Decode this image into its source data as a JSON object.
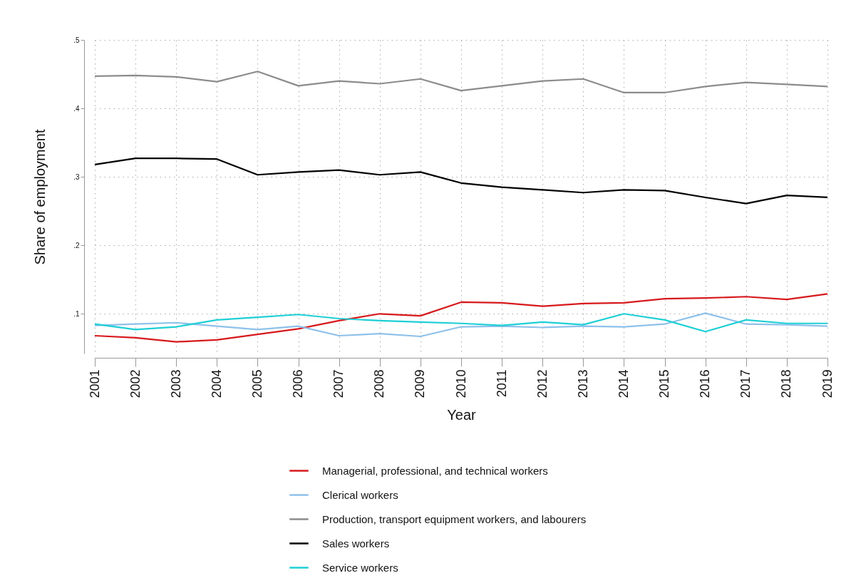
{
  "chart_data": {
    "type": "line",
    "xlabel": "Year",
    "ylabel": "Share of employment",
    "x": [
      2001,
      2002,
      2003,
      2004,
      2005,
      2006,
      2007,
      2008,
      2009,
      2010,
      2011,
      2012,
      2013,
      2014,
      2015,
      2016,
      2017,
      2018,
      2019
    ],
    "series": [
      {
        "name": "Managerial, professional, and technical workers",
        "color": "#d7191c",
        "values": [
          0.068,
          0.065,
          0.059,
          0.062,
          0.07,
          0.078,
          0.09,
          0.1,
          0.097,
          0.117,
          0.116,
          0.111,
          0.115,
          0.116,
          0.122,
          0.123,
          0.125,
          0.121,
          0.129
        ]
      },
      {
        "name": "Clerical workers",
        "color": "#8ec1ea",
        "values": [
          0.083,
          0.085,
          0.087,
          0.082,
          0.077,
          0.082,
          0.068,
          0.071,
          0.067,
          0.081,
          0.082,
          0.08,
          0.082,
          0.081,
          0.085,
          0.101,
          0.085,
          0.084,
          0.082
        ]
      },
      {
        "name": "Production, transport equipment workers, and labourers",
        "color": "#8c8c8c",
        "values": [
          0.447,
          0.448,
          0.446,
          0.439,
          0.454,
          0.433,
          0.44,
          0.436,
          0.443,
          0.426,
          0.433,
          0.44,
          0.443,
          0.423,
          0.423,
          0.432,
          0.438,
          0.435,
          0.432
        ]
      },
      {
        "name": "Sales workers",
        "color": "#000000",
        "values": [
          0.318,
          0.327,
          0.327,
          0.326,
          0.303,
          0.307,
          0.31,
          0.303,
          0.307,
          0.291,
          0.285,
          0.281,
          0.277,
          0.281,
          0.28,
          0.27,
          0.261,
          0.273,
          0.27
        ]
      },
      {
        "name": "Service workers",
        "color": "#1ecfd6",
        "values": [
          0.085,
          0.077,
          0.081,
          0.091,
          0.095,
          0.099,
          0.093,
          0.09,
          0.088,
          0.086,
          0.083,
          0.088,
          0.084,
          0.1,
          0.091,
          0.074,
          0.091,
          0.086,
          0.086
        ]
      }
    ],
    "xlim": [
      2001,
      2019
    ],
    "xticks": [
      2001,
      2002,
      2003,
      2004,
      2005,
      2006,
      2007,
      2008,
      2009,
      2010,
      2011,
      2012,
      2013,
      2014,
      2015,
      2016,
      2017,
      2018,
      2019
    ],
    "ylim": [
      0.042,
      0.5
    ],
    "yticks": [
      {
        "value": 0.1,
        "label": ".1"
      },
      {
        "value": 0.2,
        "label": ".2"
      },
      {
        "value": 0.3,
        "label": ".3"
      },
      {
        "value": 0.4,
        "label": ".4"
      },
      {
        "value": 0.5,
        "label": ".5"
      }
    ],
    "grid": true,
    "legend": "bottom"
  }
}
